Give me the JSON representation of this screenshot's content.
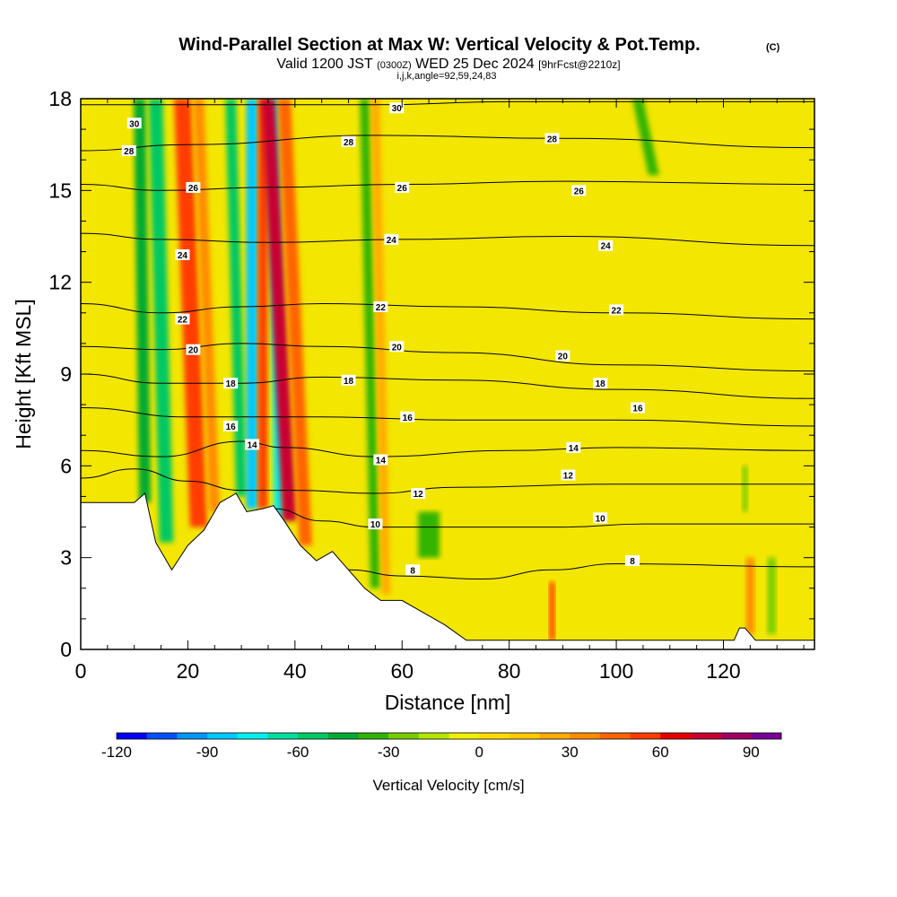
{
  "chart_data": {
    "type": "heatmap",
    "title": "Wind-Parallel Section at Max W: Vertical Velocity & Pot.Temp.",
    "copyright_mark": "(C)",
    "subtitle_parts": [
      "Valid 1200 JST",
      "(0300Z)",
      "WED 25 Dec 2024",
      "[9hrFcst@2210z]"
    ],
    "params_line": "i,j,k,angle=92,59,24,83",
    "xlabel": "Distance [nm]",
    "ylabel": "Height [Kft MSL]",
    "xlim": [
      0,
      137
    ],
    "ylim": [
      0,
      18
    ],
    "x_ticks": [
      0,
      20,
      40,
      60,
      80,
      100,
      120
    ],
    "y_ticks": [
      0,
      3,
      6,
      9,
      12,
      15,
      18
    ],
    "colorbar": {
      "label": "Vertical Velocity [cm/s]",
      "min": -120,
      "max": 100,
      "step": 10,
      "ticks": [
        -120,
        -90,
        -60,
        -30,
        0,
        30,
        60,
        90
      ],
      "colors": [
        "#0000ff",
        "#0050ff",
        "#0096ff",
        "#00c8ff",
        "#00f0f0",
        "#00dca0",
        "#00c864",
        "#00aa32",
        "#32b400",
        "#78cd00",
        "#b4e600",
        "#f0f000",
        "#ffdc00",
        "#ffc800",
        "#ffaa00",
        "#ff8c00",
        "#ff6400",
        "#ff3c00",
        "#e60000",
        "#c80032",
        "#a00064",
        "#780096"
      ]
    },
    "terrain_kft": [
      [
        0,
        4.8
      ],
      [
        10,
        4.8
      ],
      [
        12,
        5.1
      ],
      [
        14,
        3.5
      ],
      [
        17,
        2.6
      ],
      [
        20,
        3.4
      ],
      [
        23,
        3.9
      ],
      [
        26,
        4.8
      ],
      [
        29,
        5.1
      ],
      [
        31,
        4.5
      ],
      [
        34,
        4.6
      ],
      [
        36,
        4.7
      ],
      [
        38,
        4.2
      ],
      [
        41,
        3.4
      ],
      [
        44,
        2.9
      ],
      [
        47,
        3.2
      ],
      [
        50,
        2.6
      ],
      [
        53,
        2.0
      ],
      [
        56,
        1.6
      ],
      [
        60,
        1.6
      ],
      [
        64,
        1.2
      ],
      [
        68,
        0.8
      ],
      [
        72,
        0.3
      ],
      [
        122,
        0.3
      ],
      [
        123,
        0.7
      ],
      [
        124,
        0.7
      ],
      [
        126,
        0.3
      ],
      [
        137,
        0.3
      ]
    ],
    "updraft_bands": [
      {
        "x_bottom": 12,
        "x_top": 11,
        "width_nm": 2.2,
        "w_cms": -45,
        "z_bottom": 4.8,
        "z_top": 18
      },
      {
        "x_bottom": 16,
        "x_top": 14,
        "width_nm": 2.6,
        "w_cms": -60,
        "z_bottom": 3.5,
        "z_top": 18
      },
      {
        "x_bottom": 22,
        "x_top": 19,
        "width_nm": 3.2,
        "w_cms": 55,
        "z_bottom": 4.0,
        "z_top": 18
      },
      {
        "x_bottom": 25,
        "x_top": 22,
        "width_nm": 2.0,
        "w_cms": 35,
        "z_bottom": 4.5,
        "z_top": 18
      },
      {
        "x_bottom": 30,
        "x_top": 28,
        "width_nm": 2.0,
        "w_cms": -55,
        "z_bottom": 5.0,
        "z_top": 18
      },
      {
        "x_bottom": 32,
        "x_top": 32,
        "width_nm": 2.2,
        "w_cms": -90,
        "z_bottom": 4.6,
        "z_top": 18
      },
      {
        "x_bottom": 34,
        "x_top": 34,
        "width_nm": 1.8,
        "w_cms": 50,
        "z_bottom": 4.6,
        "z_top": 18
      },
      {
        "x_bottom": 37,
        "x_top": 36,
        "width_nm": 1.8,
        "w_cms": -75,
        "z_bottom": 4.2,
        "z_top": 18
      },
      {
        "x_bottom": 39,
        "x_top": 35,
        "width_nm": 2.6,
        "w_cms": 75,
        "z_bottom": 4.2,
        "z_top": 18
      },
      {
        "x_bottom": 42,
        "x_top": 38,
        "width_nm": 2.4,
        "w_cms": 40,
        "z_bottom": 3.4,
        "z_top": 18
      },
      {
        "x_bottom": 55,
        "x_top": 53,
        "width_nm": 1.8,
        "w_cms": -40,
        "z_bottom": 2.0,
        "z_top": 18
      },
      {
        "x_bottom": 57,
        "x_top": 55,
        "width_nm": 1.6,
        "w_cms": 20,
        "z_bottom": 1.8,
        "z_top": 18
      },
      {
        "x_bottom": 65,
        "x_top": 65,
        "width_nm": 4.0,
        "w_cms": -35,
        "z_bottom": 3.0,
        "z_top": 4.5
      },
      {
        "x_bottom": 88,
        "x_top": 88,
        "width_nm": 1.0,
        "w_cms": 55,
        "z_bottom": 0.3,
        "z_top": 2.2
      },
      {
        "x_bottom": 107,
        "x_top": 104,
        "width_nm": 2.0,
        "w_cms": -35,
        "z_bottom": 15.5,
        "z_top": 18
      },
      {
        "x_bottom": 124,
        "x_top": 124,
        "width_nm": 1.0,
        "w_cms": -30,
        "z_bottom": 4.5,
        "z_top": 6.0
      },
      {
        "x_bottom": 125,
        "x_top": 125,
        "width_nm": 1.6,
        "w_cms": 30,
        "z_bottom": 0.5,
        "z_top": 3.0
      },
      {
        "x_bottom": 129,
        "x_top": 129,
        "width_nm": 1.6,
        "w_cms": -25,
        "z_bottom": 0.5,
        "z_top": 3.0
      }
    ],
    "theta_contours": [
      {
        "label": "30",
        "points": [
          [
            0,
            17.8
          ],
          [
            30,
            17.8
          ],
          [
            55,
            17.8
          ],
          [
            80,
            17.9
          ],
          [
            137,
            17.9
          ]
        ],
        "label_at": [
          [
            10,
            17.2
          ],
          [
            59,
            17.7
          ]
        ]
      },
      {
        "label": "28",
        "points": [
          [
            0,
            16.3
          ],
          [
            20,
            16.5
          ],
          [
            55,
            16.8
          ],
          [
            90,
            16.7
          ],
          [
            137,
            16.4
          ]
        ],
        "label_at": [
          [
            9,
            16.3
          ],
          [
            50,
            16.6
          ],
          [
            88,
            16.7
          ]
        ]
      },
      {
        "label": "26",
        "points": [
          [
            0,
            15.2
          ],
          [
            15,
            15.0
          ],
          [
            35,
            15.1
          ],
          [
            60,
            15.2
          ],
          [
            90,
            15.3
          ],
          [
            137,
            15.2
          ]
        ],
        "label_at": [
          [
            21,
            15.1
          ],
          [
            60,
            15.1
          ],
          [
            93,
            15.0
          ]
        ]
      },
      {
        "label": "24",
        "points": [
          [
            0,
            13.6
          ],
          [
            15,
            13.4
          ],
          [
            35,
            13.3
          ],
          [
            60,
            13.4
          ],
          [
            90,
            13.5
          ],
          [
            137,
            13.2
          ]
        ],
        "label_at": [
          [
            19,
            12.9
          ],
          [
            58,
            13.4
          ],
          [
            98,
            13.2
          ]
        ]
      },
      {
        "label": "22",
        "points": [
          [
            0,
            11.3
          ],
          [
            15,
            11.0
          ],
          [
            30,
            11.2
          ],
          [
            45,
            11.3
          ],
          [
            70,
            11.2
          ],
          [
            100,
            11.0
          ],
          [
            137,
            10.8
          ]
        ],
        "label_at": [
          [
            19,
            10.8
          ],
          [
            56,
            11.2
          ],
          [
            100,
            11.1
          ]
        ]
      },
      {
        "label": "20",
        "points": [
          [
            0,
            9.9
          ],
          [
            15,
            9.8
          ],
          [
            30,
            10.0
          ],
          [
            45,
            9.9
          ],
          [
            70,
            9.7
          ],
          [
            100,
            9.3
          ],
          [
            137,
            9.1
          ]
        ],
        "label_at": [
          [
            21,
            9.8
          ],
          [
            59,
            9.9
          ],
          [
            90,
            9.6
          ]
        ]
      },
      {
        "label": "18",
        "points": [
          [
            0,
            9.0
          ],
          [
            15,
            8.7
          ],
          [
            30,
            8.7
          ],
          [
            45,
            8.9
          ],
          [
            70,
            8.8
          ],
          [
            100,
            8.5
          ],
          [
            137,
            8.2
          ]
        ],
        "label_at": [
          [
            28,
            8.7
          ],
          [
            50,
            8.8
          ],
          [
            97,
            8.7
          ]
        ]
      },
      {
        "label": "16",
        "points": [
          [
            0,
            7.9
          ],
          [
            20,
            7.6
          ],
          [
            30,
            7.6
          ],
          [
            45,
            7.6
          ],
          [
            70,
            7.5
          ],
          [
            100,
            7.5
          ],
          [
            137,
            7.3
          ]
        ],
        "label_at": [
          [
            28,
            7.3
          ],
          [
            61,
            7.6
          ],
          [
            104,
            7.9
          ]
        ]
      },
      {
        "label": "14",
        "points": [
          [
            0,
            6.5
          ],
          [
            15,
            6.3
          ],
          [
            30,
            6.8
          ],
          [
            38,
            6.6
          ],
          [
            55,
            6.3
          ],
          [
            80,
            6.5
          ],
          [
            100,
            6.6
          ],
          [
            137,
            6.5
          ]
        ],
        "label_at": [
          [
            32,
            6.7
          ],
          [
            56,
            6.2
          ],
          [
            92,
            6.6
          ]
        ]
      },
      {
        "label": "12",
        "points": [
          [
            0,
            5.6
          ],
          [
            10,
            5.9
          ],
          [
            20,
            5.5
          ],
          [
            30,
            5.2
          ],
          [
            40,
            5.2
          ],
          [
            55,
            5.1
          ],
          [
            70,
            5.3
          ],
          [
            100,
            5.4
          ],
          [
            137,
            5.4
          ]
        ],
        "label_at": [
          [
            63,
            5.1
          ],
          [
            91,
            5.7
          ]
        ]
      },
      {
        "label": "10",
        "points": [
          [
            36,
            4.6
          ],
          [
            45,
            4.2
          ],
          [
            55,
            4.0
          ],
          [
            70,
            4.0
          ],
          [
            90,
            4.0
          ],
          [
            105,
            4.1
          ],
          [
            137,
            4.1
          ]
        ],
        "label_at": [
          [
            55,
            4.1
          ],
          [
            97,
            4.3
          ]
        ]
      },
      {
        "label": "8",
        "points": [
          [
            50,
            2.6
          ],
          [
            60,
            2.4
          ],
          [
            75,
            2.3
          ],
          [
            88,
            2.6
          ],
          [
            100,
            2.8
          ],
          [
            137,
            2.7
          ]
        ],
        "label_at": [
          [
            62,
            2.6
          ],
          [
            103,
            2.9
          ]
        ]
      }
    ]
  }
}
